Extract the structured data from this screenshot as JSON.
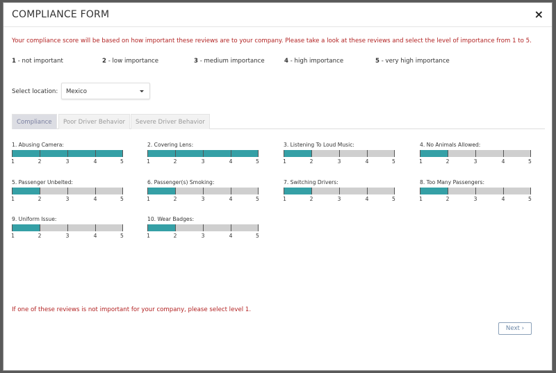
{
  "modal": {
    "title": "COMPLIANCE FORM",
    "close_icon": "×"
  },
  "intro": "Your compliance score will be based on how important these reviews are to your company. Please take a look at these reviews and select the level of importance from 1 to 5.",
  "levels": [
    {
      "num": "1",
      "text": " - not important"
    },
    {
      "num": "2",
      "text": " - low importance"
    },
    {
      "num": "3",
      "text": " - medium importance"
    },
    {
      "num": "4",
      "text": " - high importance"
    },
    {
      "num": "5",
      "text": " - very high importance"
    }
  ],
  "location": {
    "label": "Select location:",
    "value": "Mexico"
  },
  "tabs": [
    {
      "label": "Compliance",
      "active": true
    },
    {
      "label": "Poor Driver Behavior"
    },
    {
      "label": "Severe Driver Behavior"
    }
  ],
  "scale": [
    "1",
    "2",
    "3",
    "4",
    "5"
  ],
  "items": [
    {
      "label": "1. Abusing Camera:",
      "value": 5
    },
    {
      "label": "2. Covering Lens:",
      "value": 5
    },
    {
      "label": "3. Listening To Loud Music:",
      "value": 2
    },
    {
      "label": "4. No Animals Allowed:",
      "value": 2
    },
    {
      "label": "5. Passenger Unbelted:",
      "value": 2
    },
    {
      "label": "6. Passenger(s) Smoking:",
      "value": 2
    },
    {
      "label": "7. Switching Drivers:",
      "value": 2
    },
    {
      "label": "8. Too Many Passengers:",
      "value": 2
    },
    {
      "label": "9. Uniform Issue:",
      "value": 2
    },
    {
      "label": "10. Wear Badges:",
      "value": 2
    }
  ],
  "footer_note": "If one of these reviews is not important for your company, please select level 1.",
  "next_label": "Next ›",
  "colors": {
    "accent": "#35a0a6",
    "warning": "#b22222"
  }
}
